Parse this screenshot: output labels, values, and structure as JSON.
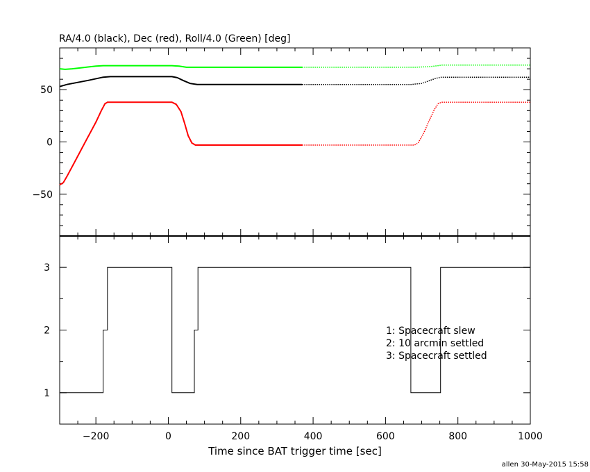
{
  "chart_data": [
    {
      "type": "line",
      "title": "RA/4.0 (black), Dec (red), Roll/4.0 (Green) [deg]",
      "xlim": [
        -300,
        1000
      ],
      "ylim": [
        -90,
        90
      ],
      "yticks": [
        -50,
        0,
        50
      ],
      "grid": false,
      "series": [
        {
          "color": "#000000",
          "points": [
            [
              -300,
              53
            ],
            [
              -280,
              55
            ],
            [
              -250,
              57
            ],
            [
              -220,
              59
            ],
            [
              -180,
              62
            ],
            [
              -160,
              62.5
            ],
            [
              10,
              62.5
            ],
            [
              25,
              61.5
            ],
            [
              40,
              59
            ],
            [
              60,
              56
            ],
            [
              80,
              55
            ],
            [
              370,
              55
            ],
            [
              670,
              55
            ],
            [
              700,
              56
            ],
            [
              720,
              58.5
            ],
            [
              740,
              61
            ],
            [
              755,
              62
            ],
            [
              1000,
              62
            ]
          ]
        },
        {
          "color": "#ff0000",
          "points": [
            [
              -300,
              -41
            ],
            [
              -290,
              -39
            ],
            [
              -280,
              -33
            ],
            [
              -260,
              -20
            ],
            [
              -240,
              -7
            ],
            [
              -220,
              6
            ],
            [
              -200,
              19
            ],
            [
              -185,
              30
            ],
            [
              -175,
              36.5
            ],
            [
              -168,
              38
            ],
            [
              10,
              38
            ],
            [
              22,
              36
            ],
            [
              35,
              29
            ],
            [
              45,
              18
            ],
            [
              55,
              6
            ],
            [
              65,
              -1
            ],
            [
              75,
              -3
            ],
            [
              370,
              -3
            ],
            [
              680,
              -3
            ],
            [
              690,
              -1
            ],
            [
              705,
              8
            ],
            [
              720,
              20
            ],
            [
              735,
              31
            ],
            [
              745,
              36.5
            ],
            [
              755,
              38
            ],
            [
              1000,
              38
            ]
          ]
        },
        {
          "color": "#00ff00",
          "points": [
            [
              -300,
              70
            ],
            [
              -285,
              69.5
            ],
            [
              -265,
              70
            ],
            [
              -240,
              71
            ],
            [
              -200,
              72.5
            ],
            [
              -180,
              73
            ],
            [
              10,
              73
            ],
            [
              30,
              72.5
            ],
            [
              50,
              71.5
            ],
            [
              370,
              71.5
            ],
            [
              680,
              71.5
            ],
            [
              720,
              72
            ],
            [
              745,
              73
            ],
            [
              755,
              73.5
            ],
            [
              1000,
              73.5
            ]
          ]
        }
      ],
      "dotted_after_x": 370
    },
    {
      "type": "line",
      "step": true,
      "xlabel": "Time since BAT trigger time [sec]",
      "xlim": [
        -300,
        1000
      ],
      "ylim": [
        0.5,
        3.5
      ],
      "xticks": [
        -200,
        0,
        200,
        400,
        600,
        800,
        1000
      ],
      "yticks": [
        1,
        2,
        3
      ],
      "grid": false,
      "series": [
        {
          "color": "#000000",
          "points": [
            [
              -300,
              1
            ],
            [
              -180,
              1
            ],
            [
              -180,
              2
            ],
            [
              -168,
              2
            ],
            [
              -168,
              3
            ],
            [
              10,
              3
            ],
            [
              10,
              1
            ],
            [
              72,
              1
            ],
            [
              72,
              2
            ],
            [
              82,
              2
            ],
            [
              82,
              3
            ],
            [
              670,
              3
            ],
            [
              670,
              1
            ],
            [
              752,
              1
            ],
            [
              752,
              3
            ],
            [
              1000,
              3
            ]
          ]
        }
      ],
      "legend": [
        "1: Spacecraft slew",
        "2: 10 arcmin settled",
        "3: Spacecraft settled"
      ],
      "legend_placement": "center-right"
    }
  ],
  "footer": "allen 30-May-2015 15:58"
}
